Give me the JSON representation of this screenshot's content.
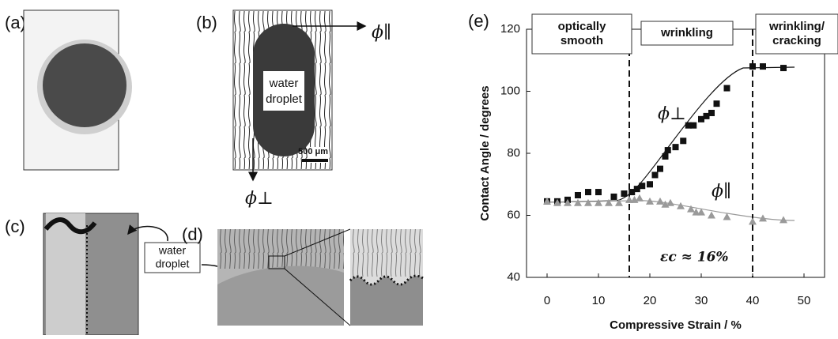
{
  "panel_labels": [
    "(a)",
    "(b)",
    "(c)",
    "(d)"
  ],
  "panel_b": {
    "droplet": [
      "water",
      "droplet"
    ],
    "scale_bar": "500 μm",
    "phi_parallel": "ϕ∥",
    "phi_perp": "ϕ⊥"
  },
  "callout": [
    "water",
    "droplet"
  ],
  "chart_data": {
    "type": "scatter",
    "panel_label": "(e)",
    "x_label": "Compressive Strain / %",
    "y_label": "Contact Angle / degrees",
    "xlim": [
      -4,
      54
    ],
    "xticks": [
      0,
      10,
      20,
      30,
      40,
      50
    ],
    "ylim": [
      40,
      120
    ],
    "yticks": [
      40,
      60,
      80,
      100,
      120
    ],
    "vlines": [
      16,
      40
    ],
    "regions": [
      [
        "optically",
        "smooth"
      ],
      [
        "wrinkling"
      ],
      [
        "wrinkling/",
        "cracking"
      ]
    ],
    "annotation": "εc ≈ 16%",
    "series": [
      {
        "name": "ϕ⊥",
        "color": "#111111",
        "marker": "square",
        "x": [
          0,
          2,
          4,
          6,
          8,
          10,
          13,
          15,
          16.5,
          17.5,
          18.5,
          20,
          21,
          22,
          23,
          23.5,
          25,
          26.5,
          27.5,
          28.5,
          30,
          31,
          32,
          33,
          35,
          40,
          42,
          46
        ],
        "values": [
          64.5,
          64.5,
          65,
          66.5,
          67.5,
          67.5,
          66,
          67,
          67.5,
          68.5,
          69.5,
          70,
          73,
          75,
          79,
          81,
          82,
          84,
          89,
          89,
          91,
          92,
          93,
          96,
          101,
          108,
          108,
          107.5
        ]
      },
      {
        "name": "ϕ∥",
        "color": "#9a9a9a",
        "marker": "triangle",
        "x": [
          0,
          2,
          4,
          6,
          8,
          10,
          12,
          14,
          16,
          17,
          18,
          20,
          22,
          23,
          24,
          26,
          28,
          29,
          30,
          32,
          35,
          40,
          42,
          46
        ],
        "values": [
          64.5,
          64,
          64,
          64,
          64,
          64,
          64,
          64,
          65,
          65,
          65.5,
          64.5,
          64.5,
          63.5,
          64,
          63,
          62,
          61,
          61,
          60,
          59.5,
          58,
          59,
          58.5
        ]
      }
    ]
  }
}
